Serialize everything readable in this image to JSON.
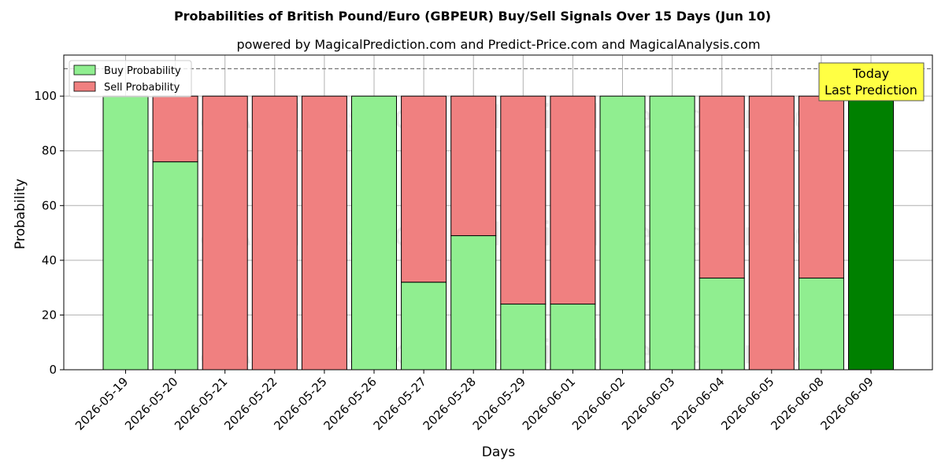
{
  "chart_data": {
    "type": "bar",
    "stacked": true,
    "title": "Probabilities of British Pound/Euro (GBPEUR) Buy/Sell Signals Over 15 Days (Jun 10)",
    "subtitle": "powered by MagicalPrediction.com and Predict-Price.com and MagicalAnalysis.com",
    "xlabel": "Days",
    "ylabel": "Probability",
    "ylim": [
      0,
      115
    ],
    "yticks": [
      0,
      20,
      40,
      60,
      80,
      100
    ],
    "reference_line": 110,
    "grid": true,
    "legend_position": "top-left",
    "categories": [
      "2026-05-19",
      "2026-05-20",
      "2026-05-21",
      "2026-05-22",
      "2026-05-25",
      "2026-05-26",
      "2026-05-27",
      "2026-05-28",
      "2026-05-29",
      "2026-06-01",
      "2026-06-02",
      "2026-06-03",
      "2026-06-04",
      "2026-06-05",
      "2026-06-08",
      "2026-06-09"
    ],
    "series": [
      {
        "name": "Buy Probability",
        "color": "#90ee90",
        "values": [
          100,
          76,
          0,
          0,
          0,
          100,
          32,
          49,
          24,
          24,
          100,
          100,
          33.5,
          0,
          33.5,
          100
        ]
      },
      {
        "name": "Sell Probability",
        "color": "#f08080",
        "values": [
          0,
          24,
          100,
          100,
          100,
          0,
          68,
          51,
          76,
          76,
          0,
          0,
          66.5,
          100,
          66.5,
          0
        ]
      }
    ],
    "highlight": {
      "index": 15,
      "color": "#008000"
    },
    "annotation": {
      "line1": "Today",
      "line2": "Last Prediction",
      "color": "#ffff44"
    },
    "watermarks": [
      "MagicalAnalysis.com",
      "MagicalPrediction.com"
    ]
  }
}
